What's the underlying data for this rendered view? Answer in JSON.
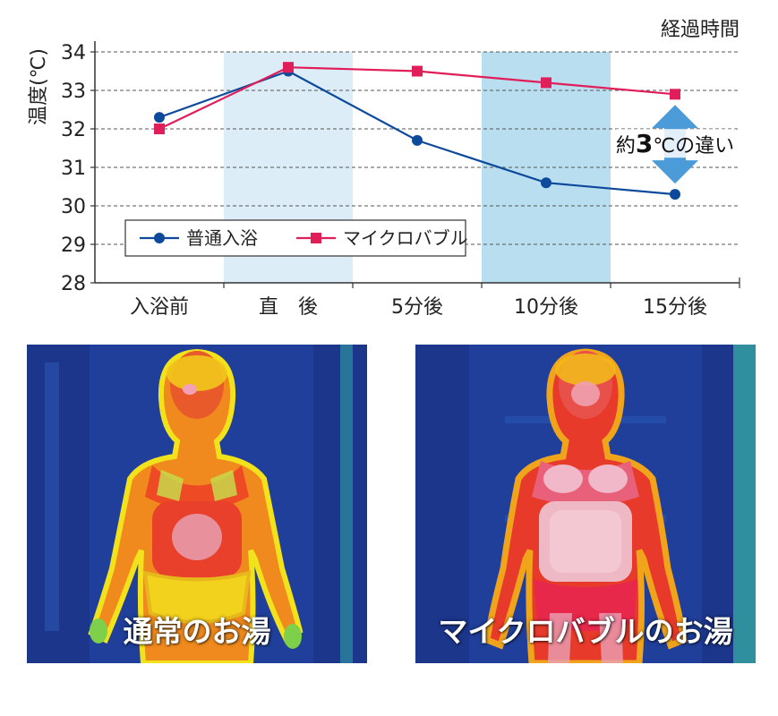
{
  "chart_data": {
    "type": "line",
    "title": "",
    "ylabel": "温度(℃)",
    "xlabel": "経過時間",
    "ylim": [
      28,
      34
    ],
    "yticks": [
      28,
      29,
      30,
      31,
      32,
      33,
      34
    ],
    "categories": [
      "入浴前",
      "直　後",
      "5分後",
      "10分後",
      "15分後"
    ],
    "grid": "horizontal-dashed",
    "legend_position": "lower-left",
    "series": [
      {
        "name": "普通入浴",
        "values": [
          32.3,
          33.5,
          31.7,
          30.6,
          30.3
        ],
        "color": "#0e4a9c",
        "marker": "circle"
      },
      {
        "name": "マイクロバブル",
        "values": [
          32.0,
          33.6,
          33.5,
          33.2,
          32.9
        ],
        "color": "#e01e5a",
        "marker": "square"
      }
    ],
    "annotation": {
      "text_prefix": "約",
      "number": "3",
      "unit": "℃",
      "text_suffix": "の違い",
      "color": "#4a9bd8"
    }
  },
  "thermo_images": [
    {
      "caption": "通常のお湯"
    },
    {
      "caption": "マイクロバブルのお湯"
    }
  ]
}
